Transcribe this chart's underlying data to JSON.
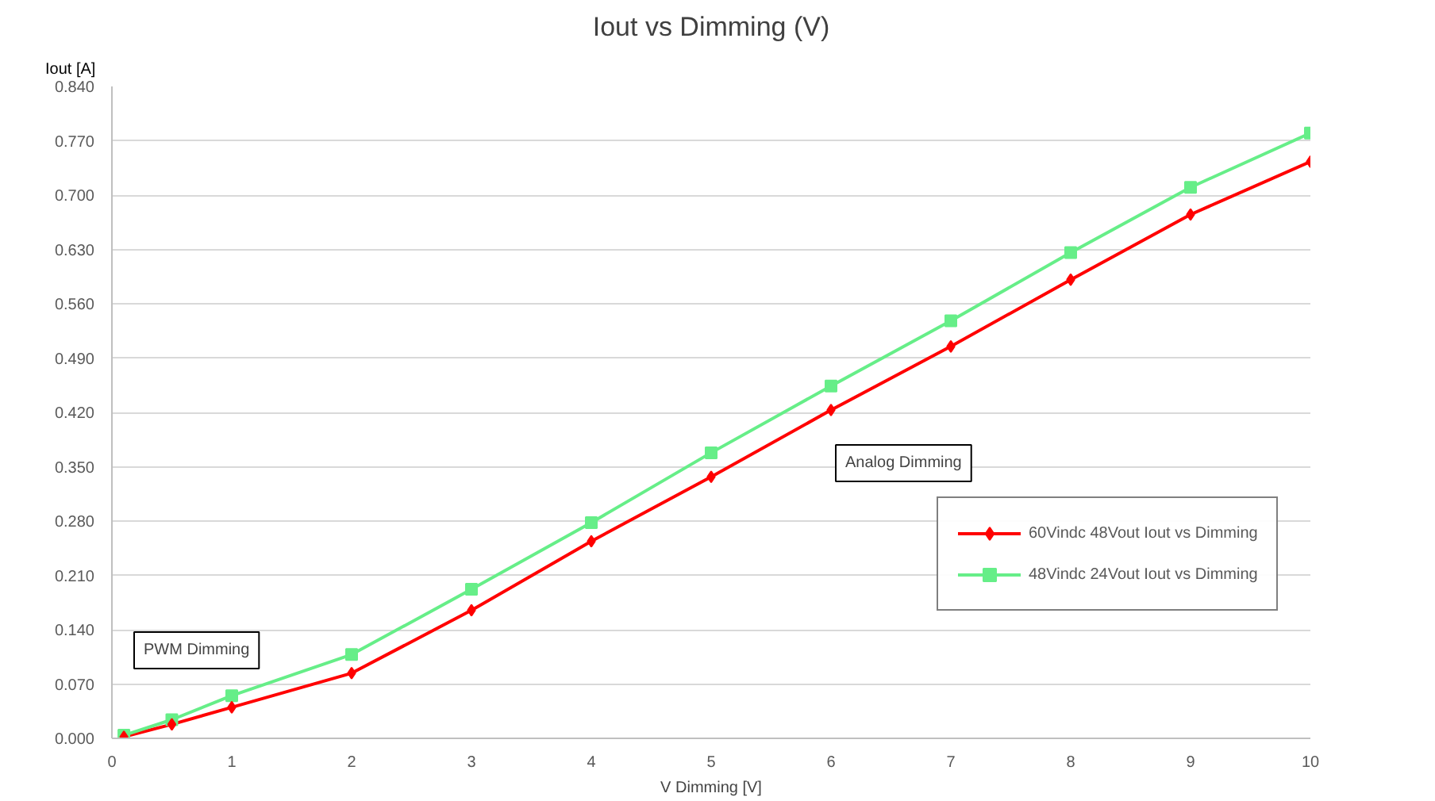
{
  "chart_data": {
    "type": "line",
    "title": "Iout vs Dimming (V)",
    "xlabel": "V Dimming [V]",
    "ylabel": "Iout [A]",
    "x": [
      0.1,
      0.5,
      1,
      2,
      3,
      4,
      5,
      6,
      7,
      8,
      9,
      10
    ],
    "series": [
      {
        "name": "60Vindc 48Vout Iout vs Dimming",
        "color": "#ff0000",
        "marker": "diamond",
        "values": [
          0.002,
          0.018,
          0.04,
          0.084,
          0.165,
          0.254,
          0.337,
          0.423,
          0.505,
          0.591,
          0.675,
          0.743
        ]
      },
      {
        "name": "48Vindc 24Vout Iout vs Dimming",
        "color": "#66ee88",
        "marker": "square",
        "values": [
          0.004,
          0.024,
          0.055,
          0.108,
          0.192,
          0.278,
          0.368,
          0.454,
          0.538,
          0.626,
          0.71,
          0.78
        ]
      }
    ],
    "xlim": [
      0,
      10
    ],
    "xticks": [
      0,
      1,
      2,
      3,
      4,
      5,
      6,
      7,
      8,
      9,
      10
    ],
    "ylim": [
      0,
      0.84
    ],
    "yticks": [
      {
        "value": 0,
        "label": "0.000"
      },
      {
        "value": 0.07,
        "label": "0.070"
      },
      {
        "value": 0.14,
        "label": "0.140"
      },
      {
        "value": 0.21,
        "label": "0.210"
      },
      {
        "value": 0.28,
        "label": "0.280"
      },
      {
        "value": 0.35,
        "label": "0.350"
      },
      {
        "value": 0.42,
        "label": "0.420"
      },
      {
        "value": 0.49,
        "label": "0.490"
      },
      {
        "value": 0.56,
        "label": "0.560"
      },
      {
        "value": 0.63,
        "label": "0.630"
      },
      {
        "value": 0.7,
        "label": "0.700"
      },
      {
        "value": 0.77,
        "label": "0.770"
      },
      {
        "value": 0.84,
        "label": "0.840"
      }
    ],
    "annotations": [
      "PWM Dimming",
      "Analog Dimming"
    ],
    "grid": "y",
    "legend": "right"
  }
}
